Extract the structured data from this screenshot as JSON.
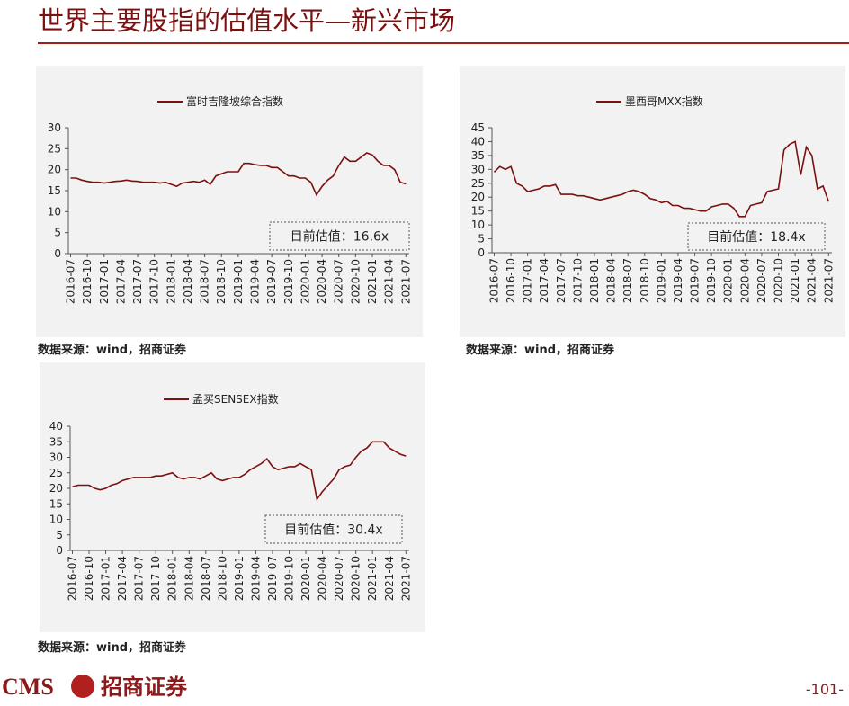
{
  "header": {
    "title": "世界主要股指的估值水平—新兴市场"
  },
  "chart_data": [
    {
      "type": "line",
      "source": "数据来源：wind，招商证券",
      "annotation": "目前估值：16.6x",
      "categories": [
        "2016-07",
        null,
        null,
        "2016-10",
        null,
        null,
        "2017-01",
        null,
        null,
        "2017-04",
        null,
        null,
        "2017-07",
        null,
        null,
        "2017-10",
        null,
        null,
        "2018-01",
        null,
        null,
        "2018-04",
        null,
        null,
        "2018-07",
        null,
        null,
        "2018-10",
        null,
        null,
        "2019-01",
        null,
        null,
        "2019-04",
        null,
        null,
        "2019-07",
        null,
        null,
        "2019-10",
        null,
        null,
        "2020-01",
        null,
        null,
        "2020-04",
        null,
        null,
        "2020-07",
        null,
        null,
        "2020-10",
        null,
        null,
        "2021-01",
        null,
        null,
        "2021-04",
        null,
        null,
        "2021-07"
      ],
      "series": [
        {
          "name": "富时吉隆坡综合指数",
          "color": "#7b1010",
          "values": [
            18,
            18,
            17.5,
            17.2,
            17,
            17,
            16.8,
            17,
            17.2,
            17.3,
            17.5,
            17.3,
            17.2,
            17,
            17,
            17,
            16.8,
            17,
            16.5,
            16,
            16.8,
            17,
            17.2,
            17,
            17.5,
            16.5,
            18.5,
            19,
            19.5,
            19.5,
            19.5,
            21.5,
            21.5,
            21.2,
            21,
            21,
            20.5,
            20.5,
            19.5,
            18.5,
            18.5,
            18,
            18,
            17,
            14,
            16,
            17.5,
            18.5,
            21,
            23,
            22,
            22,
            23,
            24,
            23.5,
            22,
            21,
            21,
            20,
            17,
            16.6
          ]
        }
      ],
      "ylim": [
        0,
        30
      ],
      "yticks": [
        0,
        5,
        10,
        15,
        20,
        25,
        30
      ]
    },
    {
      "type": "line",
      "source": "数据来源：wind，招商证券",
      "annotation": "目前估值：18.4x",
      "categories": [
        "2016-07",
        null,
        null,
        "2016-10",
        null,
        null,
        "2017-01",
        null,
        null,
        "2017-04",
        null,
        null,
        "2017-07",
        null,
        null,
        "2017-10",
        null,
        null,
        "2018-01",
        null,
        null,
        "2018-04",
        null,
        null,
        "2018-07",
        null,
        null,
        "2018-10",
        null,
        null,
        "2019-01",
        null,
        null,
        "2019-04",
        null,
        null,
        "2019-07",
        null,
        null,
        "2019-10",
        null,
        null,
        "2020-01",
        null,
        null,
        "2020-04",
        null,
        null,
        "2020-07",
        null,
        null,
        "2020-10",
        null,
        null,
        "2021-01",
        null,
        null,
        "2021-04",
        null,
        null,
        "2021-07"
      ],
      "series": [
        {
          "name": "墨西哥MXX指数",
          "color": "#7b1010",
          "values": [
            29,
            31,
            30,
            31,
            25,
            24,
            22,
            22.5,
            23,
            24,
            24,
            24.5,
            21,
            21,
            21,
            20.5,
            20.5,
            20,
            19.5,
            19,
            19.5,
            20,
            20.5,
            21,
            22,
            22.5,
            22,
            21,
            19.5,
            19,
            18,
            18.5,
            17,
            17,
            16,
            16,
            15.5,
            15,
            15,
            16.5,
            17,
            17.5,
            17.5,
            16,
            13,
            13,
            17,
            17.5,
            18,
            22,
            22.5,
            23,
            37,
            39,
            40,
            28,
            38,
            35,
            23,
            24,
            18.4
          ]
        }
      ],
      "ylim": [
        0,
        45
      ],
      "yticks": [
        0,
        5,
        10,
        15,
        20,
        25,
        30,
        35,
        40,
        45
      ]
    },
    {
      "type": "line",
      "source": "数据来源：wind，招商证券",
      "annotation": "目前估值：30.4x",
      "categories": [
        "2016-07",
        null,
        null,
        "2016-10",
        null,
        null,
        "2017-01",
        null,
        null,
        "2017-04",
        null,
        null,
        "2017-07",
        null,
        null,
        "2017-10",
        null,
        null,
        "2018-01",
        null,
        null,
        "2018-04",
        null,
        null,
        "2018-07",
        null,
        null,
        "2018-10",
        null,
        null,
        "2019-01",
        null,
        null,
        "2019-04",
        null,
        null,
        "2019-07",
        null,
        null,
        "2019-10",
        null,
        null,
        "2020-01",
        null,
        null,
        "2020-04",
        null,
        null,
        "2020-07",
        null,
        null,
        "2020-10",
        null,
        null,
        "2021-01",
        null,
        null,
        "2021-04",
        null,
        null,
        "2021-07"
      ],
      "series": [
        {
          "name": "孟买SENSEX指数",
          "color": "#7b1010",
          "values": [
            20.5,
            21,
            21,
            21,
            20,
            19.5,
            20,
            21,
            21.5,
            22.5,
            23,
            23.5,
            23.5,
            23.5,
            23.5,
            24,
            24,
            24.5,
            25,
            23.5,
            23,
            23.5,
            23.5,
            23,
            24,
            25,
            23,
            22.5,
            23,
            23.5,
            23.5,
            24.5,
            26,
            27,
            28,
            29.5,
            27,
            26,
            26.5,
            27,
            27,
            28,
            27,
            26,
            16.5,
            19,
            21,
            23,
            26,
            27,
            27.5,
            30,
            32,
            33,
            35,
            35,
            35,
            33,
            32,
            31,
            30.4
          ]
        }
      ],
      "ylim": [
        0,
        40
      ],
      "yticks": [
        0,
        5,
        10,
        15,
        20,
        25,
        30,
        35,
        40
      ]
    }
  ],
  "footer": {
    "logo": "CMS",
    "company": "招商证券",
    "page": "-101-"
  }
}
